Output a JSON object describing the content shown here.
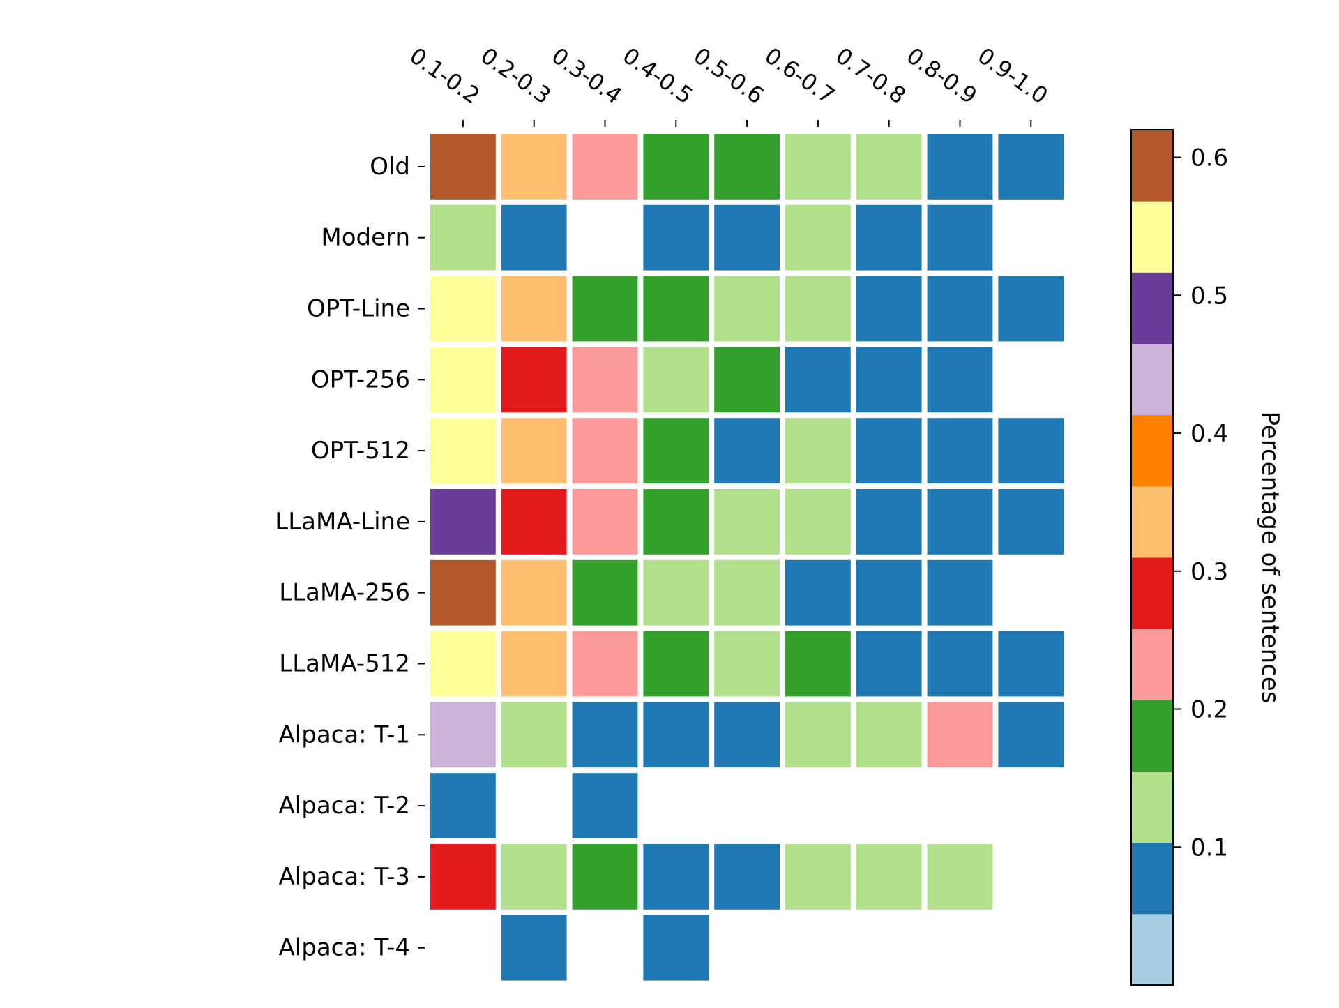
{
  "chart_data": {
    "type": "heatmap",
    "title": "",
    "x_categories": [
      "0.1-0.2",
      "0.2-0.3",
      "0.3-0.4",
      "0.4-0.5",
      "0.5-0.6",
      "0.6-0.7",
      "0.7-0.8",
      "0.8-0.9",
      "0.9-1.0"
    ],
    "y_categories": [
      "Old",
      "Modern",
      "OPT-Line",
      "OPT-256",
      "OPT-512",
      "LLaMA-Line",
      "LLaMA-256",
      "LLaMA-512",
      "Alpaca: T-1",
      "Alpaca: T-2",
      "Alpaca: T-3",
      "Alpaca: T-4"
    ],
    "values": [
      [
        0.6,
        0.3,
        0.2,
        0.15,
        0.15,
        0.1,
        0.1,
        0.05,
        0.05
      ],
      [
        0.1,
        0.05,
        null,
        0.05,
        0.05,
        0.1,
        0.05,
        0.05,
        null
      ],
      [
        0.5,
        0.3,
        0.15,
        0.15,
        0.1,
        0.1,
        0.05,
        0.05,
        0.05
      ],
      [
        0.5,
        0.25,
        0.2,
        0.1,
        0.15,
        0.05,
        0.05,
        0.05,
        null
      ],
      [
        0.5,
        0.3,
        0.2,
        0.15,
        0.05,
        0.1,
        0.05,
        0.05,
        0.05
      ],
      [
        0.45,
        0.25,
        0.2,
        0.15,
        0.1,
        0.1,
        0.05,
        0.05,
        0.05
      ],
      [
        0.55,
        0.3,
        0.15,
        0.1,
        0.1,
        0.05,
        0.05,
        0.05,
        null
      ],
      [
        0.5,
        0.3,
        0.2,
        0.15,
        0.1,
        0.15,
        0.05,
        0.05,
        0.05
      ],
      [
        0.4,
        0.1,
        0.05,
        0.05,
        0.05,
        0.1,
        0.1,
        0.2,
        0.05
      ],
      [
        0.05,
        null,
        0.05,
        null,
        null,
        null,
        null,
        null,
        null
      ],
      [
        0.25,
        0.1,
        0.15,
        0.05,
        0.05,
        0.1,
        0.1,
        0.1,
        null
      ],
      [
        null,
        0.05,
        null,
        0.05,
        null,
        null,
        null,
        null,
        null
      ]
    ],
    "colorbar": {
      "label": "Percentage of sentences",
      "vmin": 0.0,
      "vmax": 0.6,
      "ticks": [
        0.1,
        0.2,
        0.3,
        0.4,
        0.5,
        0.6
      ],
      "tick_labels": [
        "0.1",
        "0.2",
        "0.3",
        "0.4",
        "0.5",
        "0.6"
      ],
      "colors": [
        "#a6cee3",
        "#1f78b4",
        "#b2df8a",
        "#33a02c",
        "#fb9a99",
        "#e31a1c",
        "#fdbf6f",
        "#ff7f00",
        "#cab2d6",
        "#6a3d9a",
        "#ffff99",
        "#b15928"
      ]
    },
    "x_tick_position": "top",
    "grid": false,
    "empty_cell_color": "#ffffff"
  }
}
